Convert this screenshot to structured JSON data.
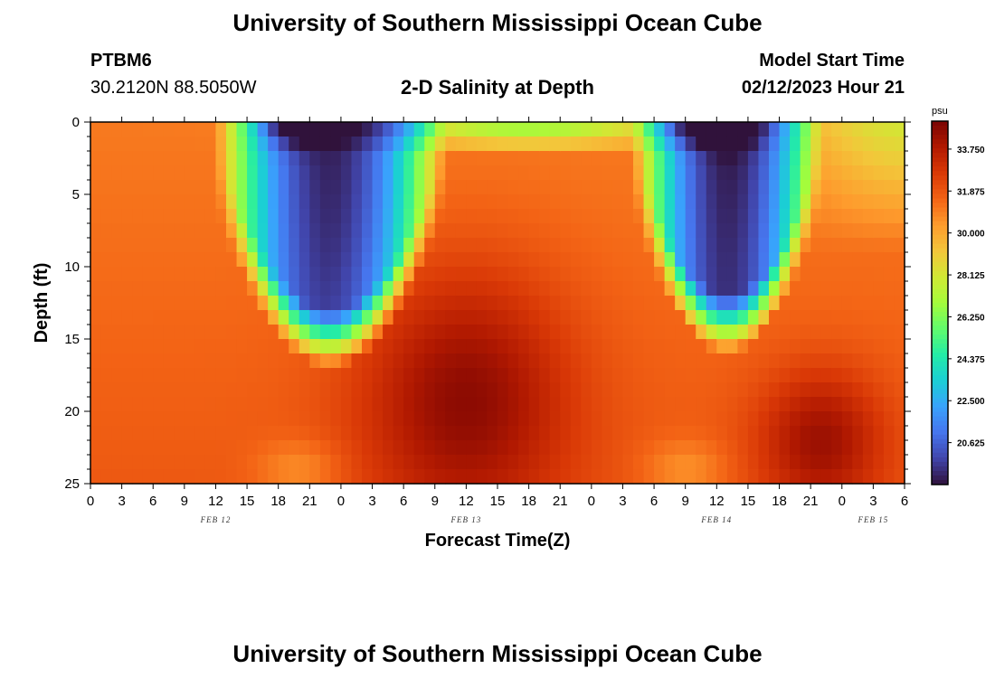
{
  "page": {
    "title_top": "University of Southern Mississippi Ocean Cube",
    "title_bottom": "University of Southern Mississippi Ocean Cube",
    "station_id": "PTBM6",
    "station_coords": "30.2120N  88.5050W",
    "plot_title": "2-D Salinity at Depth",
    "model_label": "Model Start Time",
    "model_time": "02/12/2023 Hour 21"
  },
  "chart_data": {
    "type": "heatmap",
    "title": "2-D Salinity at Depth",
    "xlabel": "Forecast Time(Z)",
    "ylabel": "Depth (ft)",
    "x_hours_range": [
      0,
      78
    ],
    "x_tick_hours": [
      0,
      3,
      6,
      9,
      12,
      15,
      18,
      21,
      24,
      27,
      30,
      33,
      36,
      39,
      42,
      45,
      48,
      51,
      54,
      57,
      60,
      63,
      66,
      69,
      72,
      75,
      78
    ],
    "x_tick_labels": [
      "0",
      "3",
      "6",
      "9",
      "12",
      "15",
      "18",
      "21",
      "0",
      "3",
      "6",
      "9",
      "12",
      "15",
      "18",
      "21",
      "0",
      "3",
      "6",
      "9",
      "12",
      "15",
      "18",
      "21",
      "0",
      "3",
      "6"
    ],
    "day_labels": [
      {
        "hour": 12,
        "label": "FEB 12"
      },
      {
        "hour": 36,
        "label": "FEB 13"
      },
      {
        "hour": 60,
        "label": "FEB 14"
      },
      {
        "hour": 75,
        "label": "FEB 15"
      }
    ],
    "y_range": [
      0,
      25
    ],
    "y_ticks": [
      0,
      5,
      10,
      15,
      20,
      25
    ],
    "y_tick_labels": [
      "0",
      "5",
      "10",
      "15",
      "20",
      "25"
    ],
    "colorbar": {
      "unit": "psu",
      "min": 18.75,
      "max": 35.0,
      "tick_values": [
        33.75,
        31.875,
        30.0,
        28.125,
        26.25,
        24.375,
        22.5,
        20.625
      ],
      "tick_labels": [
        "33.750",
        "31.875",
        "30.000",
        "28.125",
        "26.250",
        "24.375",
        "22.500",
        "20.625"
      ]
    },
    "field_estimate": {
      "description": "Approximate salinity (psu) by forecast hour and depth read from colors",
      "surface_fresh_lens_1": {
        "hours": [
          12,
          33
        ],
        "min_psu": 20.0
      },
      "surface_fresh_lens_2": {
        "hours": [
          53,
          68
        ],
        "min_psu": 20.0
      },
      "deep_max_1": {
        "hour": 36,
        "depth_ft": 20,
        "psu": 34.5
      },
      "deep_max_2": {
        "hour": 69,
        "depth_ft": 22,
        "psu": 34.0
      },
      "background_psu": 31.5
    }
  },
  "colors": {
    "palette": [
      "#30123b",
      "#4145ab",
      "#4675ed",
      "#39a2fc",
      "#1bcfd4",
      "#24eca6",
      "#61fc6c",
      "#a4fc3b",
      "#d1e834",
      "#f3c63a",
      "#fe9b2d",
      "#f36315",
      "#d93806",
      "#b11901",
      "#7a0403"
    ]
  }
}
